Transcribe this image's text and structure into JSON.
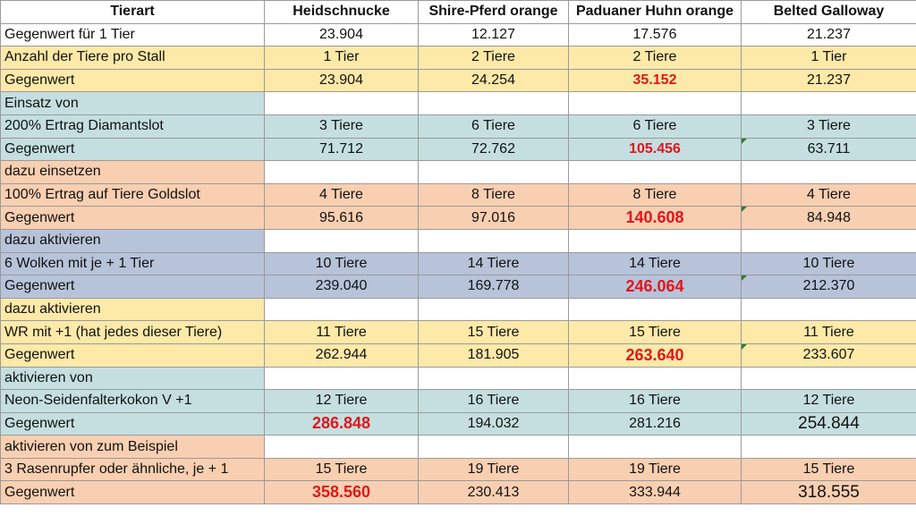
{
  "colors": {
    "white": "#ffffff",
    "yellow": "#fde9a8",
    "teal": "#c5dfe0",
    "peach": "#f9cfb1",
    "blue": "#b7c3d9",
    "red_text": "#e0161b"
  },
  "header": [
    "Tierart",
    "Heidschnucke",
    "Shire-Pferd orange",
    "Paduaner Huhn orange",
    "Belted Galloway"
  ],
  "rows": [
    {
      "label": "Gegenwert für 1 Tier",
      "bg": "white",
      "cells": [
        {
          "v": "23.904"
        },
        {
          "v": "12.127"
        },
        {
          "v": "17.576"
        },
        {
          "v": "21.237"
        }
      ]
    },
    {
      "label": "Anzahl der Tiere pro Stall",
      "bg": "yellow",
      "cells": [
        {
          "v": "1 Tier"
        },
        {
          "v": "2 Tiere"
        },
        {
          "v": "2 Tiere"
        },
        {
          "v": "1 Tier"
        }
      ]
    },
    {
      "label": "Gegenwert",
      "bg": "yellow",
      "cells": [
        {
          "v": "23.904"
        },
        {
          "v": "24.254"
        },
        {
          "v": "35.152",
          "red": true
        },
        {
          "v": "21.237"
        }
      ]
    },
    {
      "label": "Einsatz von",
      "bg": "teal",
      "label_only": true
    },
    {
      "label": "200% Ertrag Diamantslot",
      "bg": "teal",
      "cells": [
        {
          "v": "3 Tiere"
        },
        {
          "v": "6 Tiere"
        },
        {
          "v": "6 Tiere"
        },
        {
          "v": "3 Tiere"
        }
      ]
    },
    {
      "label": "Gegenwert",
      "bg": "teal",
      "cells": [
        {
          "v": "71.712"
        },
        {
          "v": "72.762"
        },
        {
          "v": "105.456",
          "red": true
        },
        {
          "v": "63.711",
          "marker": true
        }
      ]
    },
    {
      "label": "dazu  einsetzen",
      "bg": "peach",
      "label_only": true
    },
    {
      "label": "100% Ertrag auf Tiere  Goldslot",
      "bg": "peach",
      "cells": [
        {
          "v": "4 Tiere"
        },
        {
          "v": "8 Tiere"
        },
        {
          "v": "8 Tiere"
        },
        {
          "v": "4 Tiere"
        }
      ]
    },
    {
      "label": "Gegenwert",
      "bg": "peach",
      "cells": [
        {
          "v": "95.616"
        },
        {
          "v": "97.016"
        },
        {
          "v": "140.608",
          "red": true,
          "size": "big"
        },
        {
          "v": "84.948",
          "marker": true
        }
      ]
    },
    {
      "label": "dazu  aktivieren",
      "bg": "blue",
      "label_only": true
    },
    {
      "label": "6 Wolken mit je + 1 Tier",
      "bg": "blue",
      "cells": [
        {
          "v": "10 Tiere"
        },
        {
          "v": "14 Tiere"
        },
        {
          "v": "14 Tiere"
        },
        {
          "v": "10 Tiere"
        }
      ]
    },
    {
      "label": "Gegenwert",
      "bg": "blue",
      "cells": [
        {
          "v": "239.040"
        },
        {
          "v": "169.778"
        },
        {
          "v": "246.064",
          "red": true,
          "size": "big"
        },
        {
          "v": "212.370",
          "marker": true
        }
      ]
    },
    {
      "label": "dazu  aktivieren",
      "bg": "yellow",
      "label_only": true
    },
    {
      "label": "WR mit +1 (hat jedes dieser Tiere)",
      "bg": "yellow",
      "cells": [
        {
          "v": "11 Tiere"
        },
        {
          "v": "15 Tiere"
        },
        {
          "v": "15 Tiere"
        },
        {
          "v": "11 Tiere"
        }
      ]
    },
    {
      "label": "Gegenwert",
      "bg": "yellow",
      "cells": [
        {
          "v": "262.944"
        },
        {
          "v": "181.905"
        },
        {
          "v": "263.640",
          "red": true,
          "size": "big"
        },
        {
          "v": "233.607",
          "marker": true
        }
      ]
    },
    {
      "label": "aktivieren von",
      "bg": "teal",
      "label_only": true
    },
    {
      "label": "Neon-Seidenfalterkokon V +1",
      "bg": "teal",
      "cells": [
        {
          "v": "12 Tiere"
        },
        {
          "v": "16 Tiere"
        },
        {
          "v": "16 Tiere"
        },
        {
          "v": "12 Tiere"
        }
      ]
    },
    {
      "label": "Gegenwert",
      "bg": "teal",
      "cells": [
        {
          "v": "286.848",
          "red": true,
          "size": "big"
        },
        {
          "v": "194.032"
        },
        {
          "v": "281.216"
        },
        {
          "v": "254.844",
          "size": "bigger"
        }
      ]
    },
    {
      "label": "aktivieren von zum Beispiel",
      "bg": "peach",
      "label_only": true
    },
    {
      "label": "3 Rasenrupfer oder ähnliche, je + 1",
      "bg": "peach",
      "cells": [
        {
          "v": "15 Tiere"
        },
        {
          "v": "19 Tiere"
        },
        {
          "v": "19 Tiere"
        },
        {
          "v": "15 Tiere"
        }
      ]
    },
    {
      "label": "Gegenwert",
      "bg": "peach",
      "cells": [
        {
          "v": "358.560",
          "red": true,
          "size": "big"
        },
        {
          "v": "230.413"
        },
        {
          "v": "333.944"
        },
        {
          "v": "318.555",
          "size": "bigger"
        }
      ]
    }
  ]
}
